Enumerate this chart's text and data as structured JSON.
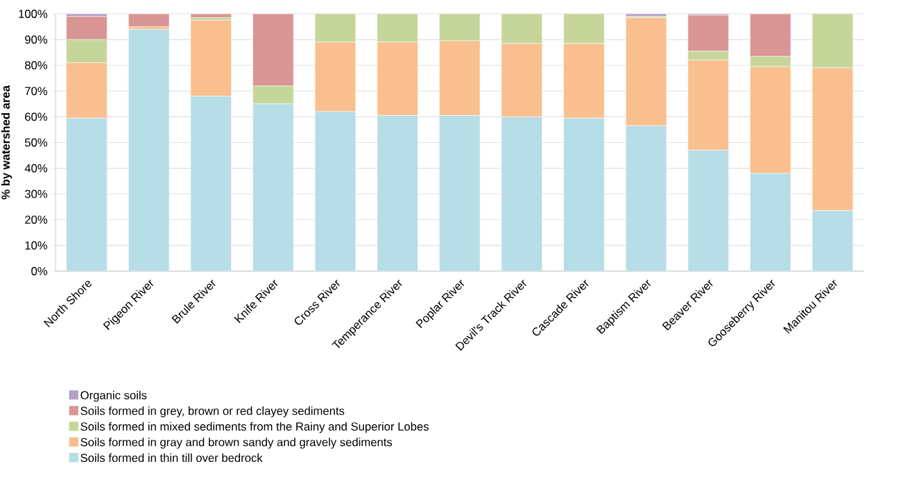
{
  "chart_data": {
    "type": "bar",
    "stacked": true,
    "ylabel": "% by watershed area",
    "categories": [
      "North Shore",
      "Pigeon River",
      "Brule River",
      "Knife River",
      "Cross River",
      "Temperance River",
      "Poplar River",
      "Devil's Track River",
      "Cascade River",
      "Baptism River",
      "Beaver River",
      "Gooseberry River",
      "Manitou River"
    ],
    "series": [
      {
        "name": "Soils formed in thin till over bedrock",
        "color": "#b7dde6",
        "values": [
          59.5,
          94,
          68,
          65,
          62,
          60.5,
          60.5,
          60,
          59.5,
          56.5,
          47,
          38,
          23.5
        ]
      },
      {
        "name": "Soils formed in gray and brown sandy and gravely sediments",
        "color": "#f9bf8f",
        "values": [
          21.5,
          1,
          29.5,
          0,
          27,
          28.5,
          29,
          28.5,
          29,
          42,
          35,
          41.5,
          55.5
        ]
      },
      {
        "name": "Soils formed in mixed sediments from the Rainy and Superior Lobes",
        "color": "#c6d69b",
        "values": [
          9,
          0,
          1,
          7,
          11,
          11,
          10.5,
          11.5,
          11.5,
          0.5,
          3.5,
          4,
          21
        ]
      },
      {
        "name": "Soils formed in grey, brown or red clayey sediments",
        "color": "#d99695",
        "values": [
          9,
          5,
          1.5,
          28,
          0,
          0,
          0,
          0,
          0,
          0,
          14,
          16.5,
          0
        ]
      },
      {
        "name": "Organic soils",
        "color": "#b3a2c7",
        "values": [
          1,
          0,
          0,
          0,
          0,
          0,
          0,
          0,
          0,
          1,
          0.5,
          0,
          0
        ]
      }
    ],
    "ylim": [
      0,
      100
    ],
    "yticks": [
      {
        "value": 0,
        "label": "0%"
      },
      {
        "value": 10,
        "label": "10%"
      },
      {
        "value": 20,
        "label": "20%"
      },
      {
        "value": 30,
        "label": "30%"
      },
      {
        "value": 40,
        "label": "40%"
      },
      {
        "value": 50,
        "label": "50%"
      },
      {
        "value": 60,
        "label": "60%"
      },
      {
        "value": 70,
        "label": "70%"
      },
      {
        "value": 80,
        "label": "80%"
      },
      {
        "value": 90,
        "label": "90%"
      },
      {
        "value": 100,
        "label": "100%"
      }
    ],
    "grid": "y",
    "legend": "bottom left"
  }
}
